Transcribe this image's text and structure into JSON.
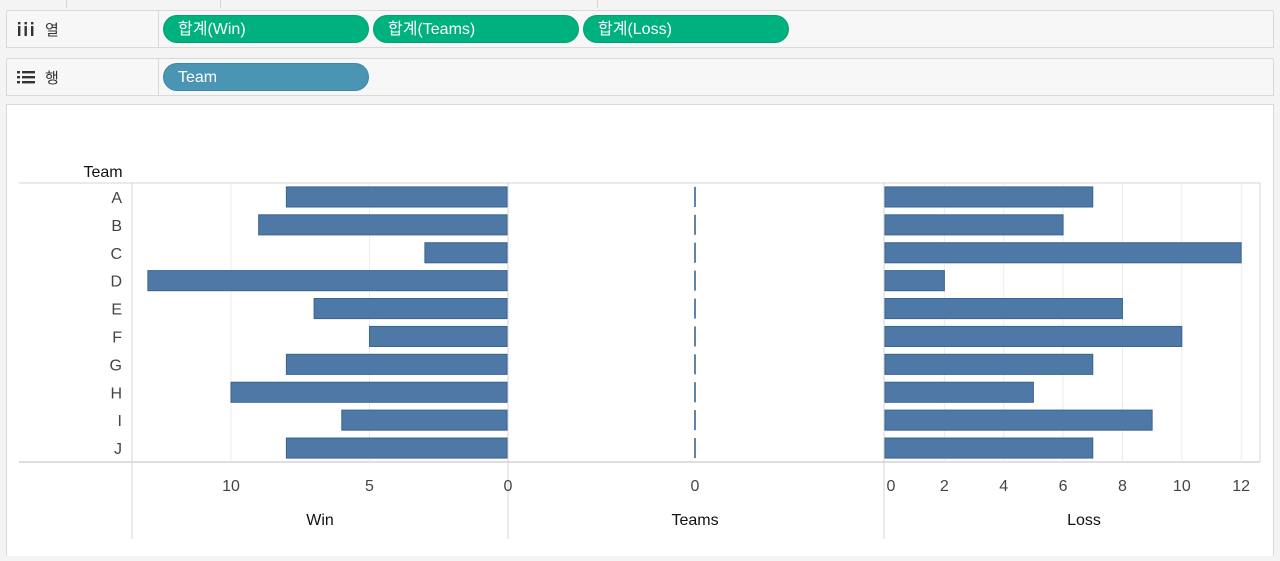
{
  "shelves": {
    "columns": {
      "label": "열",
      "icon": "columns-icon",
      "pills": [
        "합계(Win)",
        "합계(Teams)",
        "합계(Loss)"
      ]
    },
    "rows": {
      "label": "행",
      "icon": "rows-list-icon",
      "pills": [
        "Team"
      ]
    }
  },
  "colors": {
    "bar": "#4e79a7",
    "bar_stroke": "#3a6591",
    "pill_green": "#00b180",
    "pill_blue": "#4b95b4"
  },
  "chart_data": {
    "type": "bar",
    "orientation": "horizontal",
    "row_header": "Team",
    "categories": [
      "A",
      "B",
      "C",
      "D",
      "E",
      "F",
      "G",
      "H",
      "I",
      "J"
    ],
    "series": [
      {
        "name": "Win",
        "values": [
          8,
          9,
          3,
          13,
          7,
          5,
          8,
          10,
          6,
          8
        ],
        "xlim": [
          13.5,
          0
        ],
        "reversed": true,
        "ticks": [
          10,
          5,
          0
        ]
      },
      {
        "name": "Teams",
        "values": [
          0,
          0,
          0,
          0,
          0,
          0,
          0,
          0,
          0,
          0
        ],
        "ticks": [
          0
        ]
      },
      {
        "name": "Loss",
        "values": [
          7,
          6,
          12,
          2,
          8,
          10,
          7,
          5,
          9,
          7
        ],
        "xlim": [
          0,
          12.6
        ],
        "ticks": [
          0,
          2,
          4,
          6,
          8,
          10,
          12
        ]
      }
    ],
    "grid": true
  }
}
